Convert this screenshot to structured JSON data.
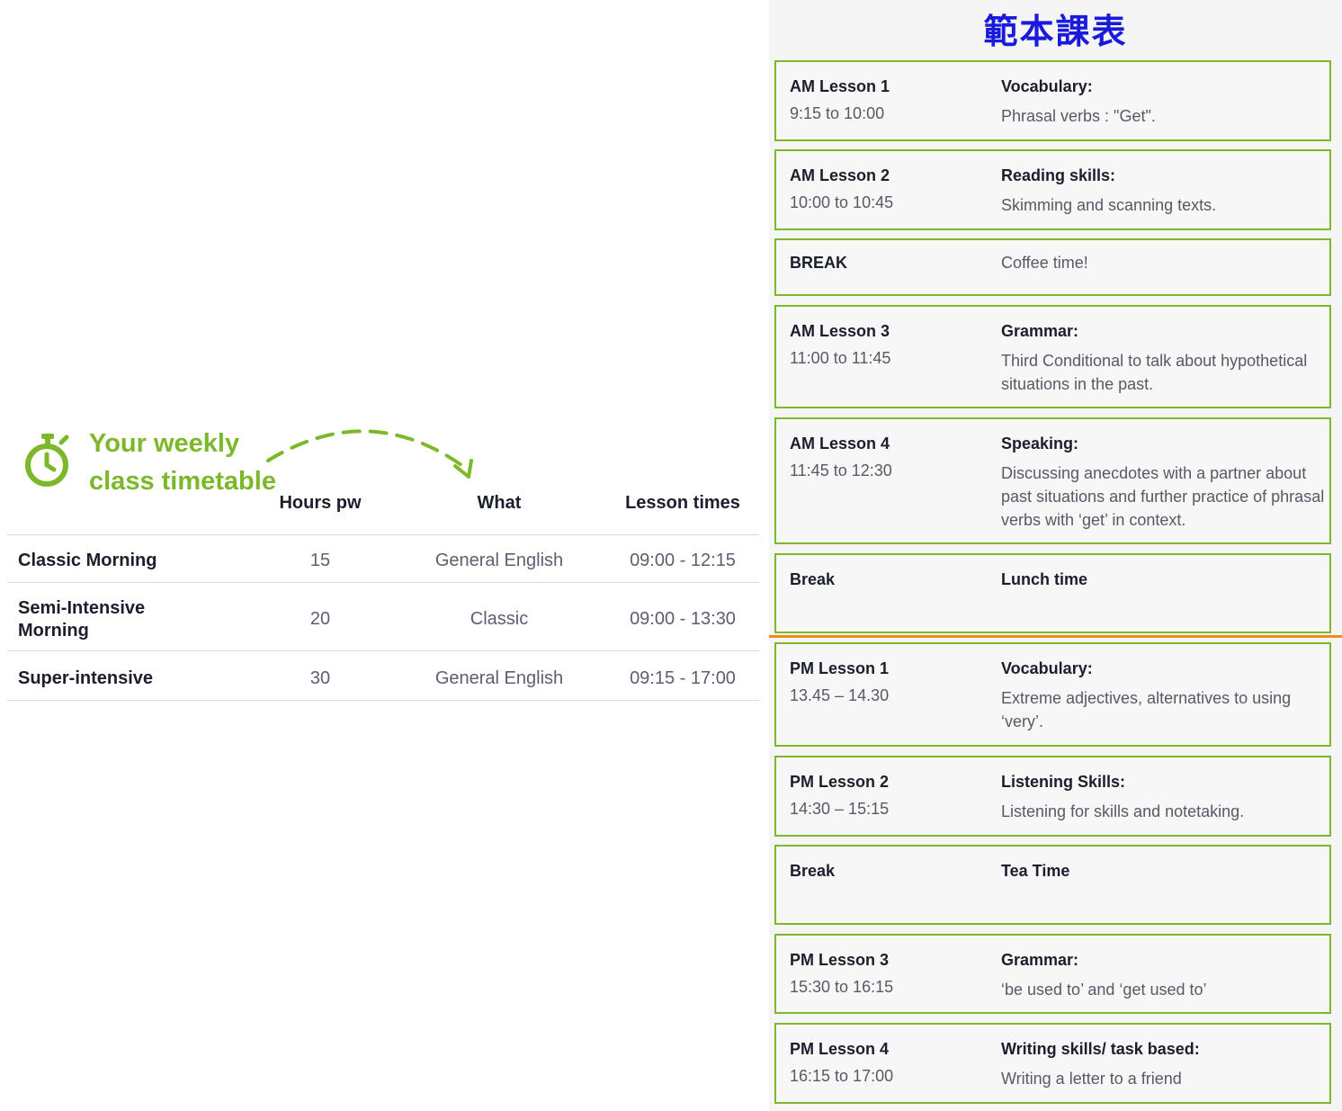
{
  "weekly": {
    "heading_line1": "Your weekly",
    "heading_line2": "class timetable",
    "columns": {
      "hours": "Hours pw",
      "what": "What",
      "times": "Lesson times"
    },
    "rows": [
      {
        "name": "Classic Morning",
        "hours": "15",
        "what": "General English",
        "times": "09:00 - 12:15"
      },
      {
        "name": "Semi-Intensive Morning",
        "hours": "20",
        "what": "Classic",
        "times": "09:00 - 13:30"
      },
      {
        "name": "Super-intensive",
        "hours": "30",
        "what": "General English",
        "times": "09:15 - 17:00"
      }
    ],
    "accent_color": "#7cb829"
  },
  "sample": {
    "title": "範本課表",
    "title_color": "#1a1adc",
    "divider_color": "#f08a1c",
    "cards": [
      {
        "label": "AM Lesson 1",
        "time": "9:15 to 10:00",
        "subject": "Vocabulary:",
        "description": "Phrasal verbs : \"Get\"."
      },
      {
        "label": "AM Lesson 2",
        "time": "10:00 to 10:45",
        "subject": "Reading skills:",
        "description": "Skimming and scanning texts."
      },
      {
        "label": "BREAK",
        "time": "",
        "subject": "",
        "description": "Coffee time!"
      },
      {
        "label": "AM Lesson 3",
        "time": "11:00 to 11:45",
        "subject": "Grammar:",
        "description": "Third Conditional to talk about hypothetical situations in the past."
      },
      {
        "label": "AM Lesson 4",
        "time": "11:45 to 12:30",
        "subject": "Speaking:",
        "description": "Discussing anecdotes with a partner about past situations and further practice of phrasal verbs with ‘get’ in context."
      },
      {
        "label": "Break",
        "time": "",
        "subject": "Lunch time",
        "description": ""
      },
      {
        "label": "PM Lesson 1",
        "time": "13.45 – 14.30",
        "subject": "Vocabulary:",
        "description": "Extreme adjectives, alternatives to using ‘very’."
      },
      {
        "label": "PM Lesson 2",
        "time": "14:30 – 15:15",
        "subject": "Listening Skills:",
        "description": "Listening for skills and notetaking."
      },
      {
        "label": "Break",
        "time": "",
        "subject": "Tea Time",
        "description": ""
      },
      {
        "label": "PM Lesson 3",
        "time": "15:30 to 16:15",
        "subject": "Grammar:",
        "description": "‘be used to’ and ‘get used to’"
      },
      {
        "label": "PM Lesson 4",
        "time": "16:15 to 17:00",
        "subject": "Writing skills/ task based:",
        "description": "Writing a letter to a friend"
      }
    ]
  }
}
